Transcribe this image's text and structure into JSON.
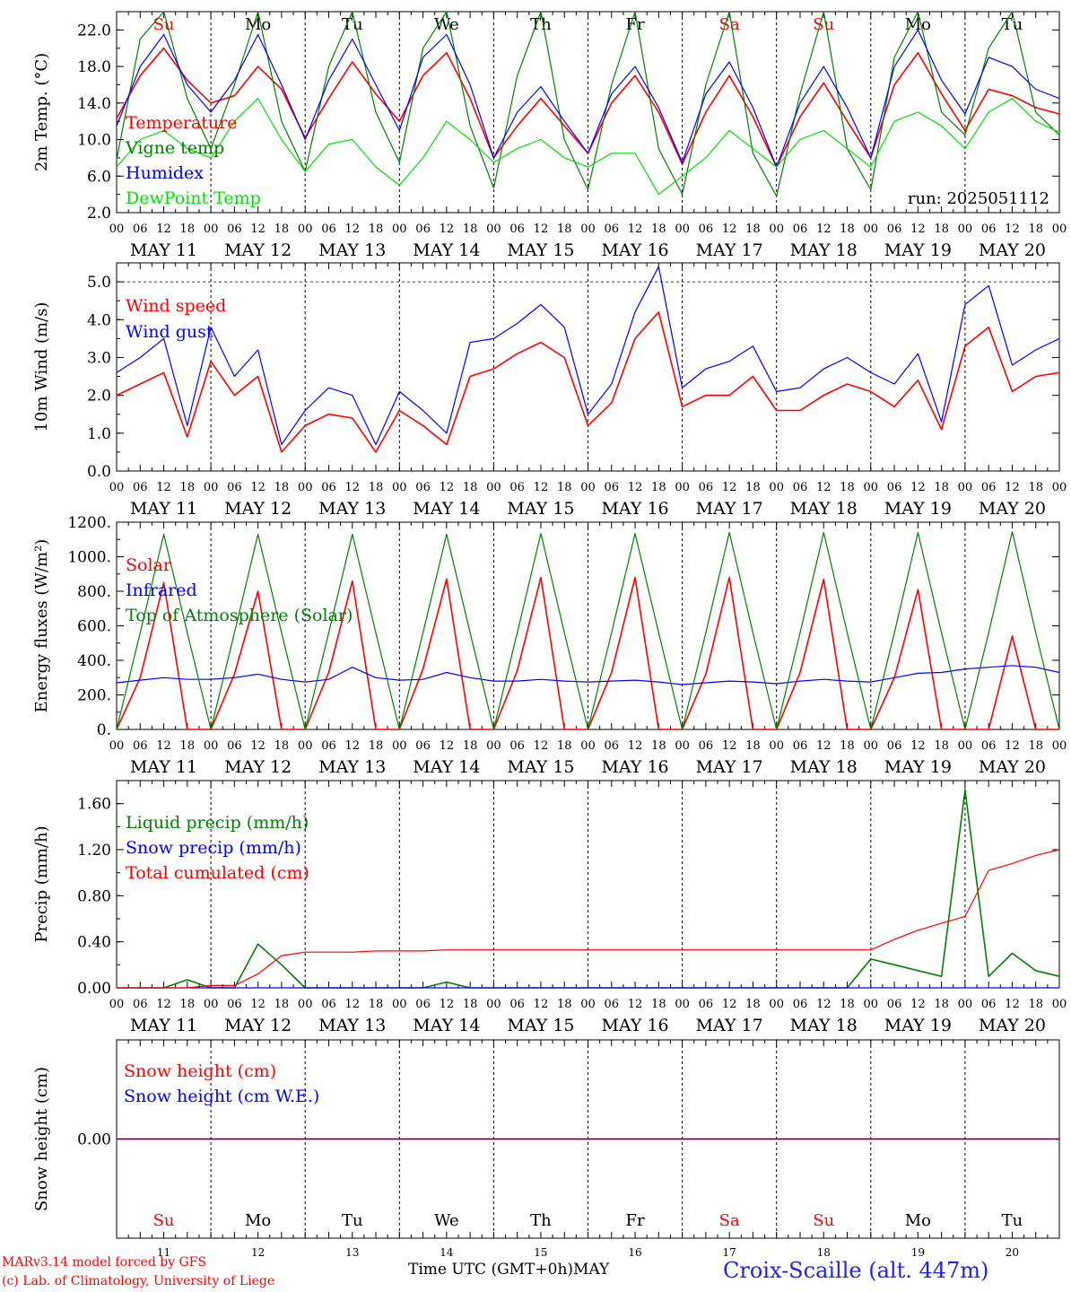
{
  "days": [
    {
      "abbr": "Su",
      "date": "MAY 11",
      "num": "11",
      "color": "#ff0000"
    },
    {
      "abbr": "Mo",
      "date": "MAY 12",
      "num": "12",
      "color": "#000000"
    },
    {
      "abbr": "Tu",
      "date": "MAY 13",
      "num": "13",
      "color": "#000000"
    },
    {
      "abbr": "We",
      "date": "MAY 14",
      "num": "14",
      "color": "#000000"
    },
    {
      "abbr": "Th",
      "date": "MAY 15",
      "num": "15",
      "color": "#000000"
    },
    {
      "abbr": "Fr",
      "date": "MAY 16",
      "num": "16",
      "color": "#000000"
    },
    {
      "abbr": "Sa",
      "date": "MAY 17",
      "num": "17",
      "color": "#ff0000"
    },
    {
      "abbr": "Su",
      "date": "MAY 18",
      "num": "18",
      "color": "#ff0000"
    },
    {
      "abbr": "Mo",
      "date": "MAY 19",
      "num": "19",
      "color": "#000000"
    },
    {
      "abbr": "Tu",
      "date": "MAY 20",
      "num": "20",
      "color": "#000000"
    }
  ],
  "hour_ticks": [
    "00",
    "06",
    "12",
    "18"
  ],
  "final_hour_tick": "00",
  "footer": {
    "model": "MARv3.14 model forced by GFS",
    "lab": "(c) Lab. of Climatology, University of Liege",
    "xlabel": "Time UTC (GMT+0h)",
    "month": "MAY",
    "station": "Croix-Scaille (alt. 447m)"
  },
  "colors": {
    "red": "#ff0000",
    "green": "#008000",
    "blue": "#0000ff",
    "lightgreen": "#00e000"
  },
  "chart_data": [
    {
      "type": "line",
      "ylabel": "2m Temp. (°C)",
      "ylim": [
        2.0,
        24.0
      ],
      "yticks": [
        "2.0",
        "6.0",
        "10.0",
        "14.0",
        "18.0",
        "22.0"
      ],
      "run_label": "run: 2025051112",
      "x_hours": [
        0,
        6,
        12,
        18,
        24,
        30,
        36,
        42,
        48,
        54,
        60,
        66,
        72,
        78,
        84,
        90,
        96,
        102,
        108,
        114,
        120,
        126,
        132,
        138,
        144,
        150,
        156,
        162,
        168,
        174,
        180,
        186,
        192,
        198,
        204,
        210,
        216,
        222,
        228,
        234,
        240
      ],
      "series": [
        {
          "name": "Temperature",
          "color": "#ff0000",
          "values": [
            12.3,
            17.0,
            20.0,
            16.5,
            14.0,
            14.8,
            18.0,
            15.5,
            10.2,
            14.5,
            18.5,
            15.0,
            12.0,
            17.0,
            19.5,
            14.5,
            8.0,
            11.5,
            14.5,
            11.5,
            8.5,
            14.0,
            17.0,
            13.0,
            7.3,
            13.0,
            17.0,
            12.5,
            7.0,
            12.5,
            16.2,
            12.0,
            8.0,
            16.0,
            19.5,
            15.0,
            11.0,
            15.5,
            14.8,
            13.5,
            12.8
          ]
        },
        {
          "name": "Vigne temp",
          "color": "#008000",
          "values": [
            7.8,
            21.0,
            26.0,
            14.5,
            9.0,
            16.0,
            27.0,
            12.0,
            6.5,
            18.0,
            27.0,
            13.0,
            7.5,
            20.0,
            27.0,
            11.5,
            4.7,
            17.0,
            27.0,
            10.0,
            4.5,
            16.0,
            27.0,
            9.0,
            4.0,
            16.0,
            27.0,
            8.5,
            3.8,
            15.0,
            26.0,
            9.0,
            4.5,
            19.0,
            27.0,
            13.0,
            10.5,
            20.0,
            26.0,
            13.0,
            10.5
          ]
        },
        {
          "name": "Humidex",
          "color": "#0000ff",
          "values": [
            11.5,
            18.0,
            21.5,
            16.0,
            13.0,
            16.5,
            21.5,
            16.0,
            10.0,
            16.5,
            21.0,
            16.0,
            11.0,
            19.0,
            21.5,
            16.0,
            8.0,
            13.0,
            15.8,
            12.0,
            8.5,
            15.0,
            18.0,
            13.5,
            7.5,
            15.0,
            18.5,
            13.5,
            7.0,
            14.0,
            18.0,
            13.5,
            8.0,
            18.0,
            22.0,
            16.5,
            12.8,
            19.0,
            18.0,
            15.5,
            14.5
          ]
        },
        {
          "name": "DewPoint Temp",
          "color": "#00e000",
          "values": [
            7.0,
            10.0,
            11.0,
            9.0,
            8.0,
            12.0,
            14.5,
            10.0,
            6.5,
            9.5,
            10.0,
            7.0,
            5.0,
            8.0,
            12.0,
            10.0,
            7.5,
            9.0,
            10.0,
            8.0,
            7.0,
            8.5,
            8.5,
            4.0,
            6.0,
            8.0,
            11.0,
            9.0,
            7.0,
            10.0,
            11.0,
            9.0,
            7.0,
            12.0,
            13.0,
            11.5,
            9.0,
            13.0,
            14.5,
            12.0,
            10.8
          ]
        }
      ]
    },
    {
      "type": "line",
      "ylabel": "10m Wind (m/s)",
      "ylim": [
        0.0,
        5.5
      ],
      "yticks": [
        "0.0",
        "1.0",
        "2.0",
        "3.0",
        "4.0",
        "5.0"
      ],
      "x_hours": [
        0,
        6,
        12,
        18,
        24,
        30,
        36,
        42,
        48,
        54,
        60,
        66,
        72,
        78,
        84,
        90,
        96,
        102,
        108,
        114,
        120,
        126,
        132,
        138,
        144,
        150,
        156,
        162,
        168,
        174,
        180,
        186,
        192,
        198,
        204,
        210,
        216,
        222,
        228,
        234,
        240
      ],
      "series": [
        {
          "name": "Wind speed",
          "color": "#ff0000",
          "values": [
            2.0,
            2.3,
            2.6,
            0.9,
            2.9,
            2.0,
            2.5,
            0.5,
            1.2,
            1.5,
            1.4,
            0.5,
            1.6,
            1.2,
            0.7,
            2.5,
            2.7,
            3.1,
            3.4,
            3.0,
            1.2,
            1.8,
            3.5,
            4.2,
            1.7,
            2.0,
            2.0,
            2.5,
            1.6,
            1.6,
            2.0,
            2.3,
            2.1,
            1.7,
            2.4,
            1.1,
            3.3,
            3.8,
            2.1,
            2.5,
            2.6
          ]
        },
        {
          "name": "Wind gust",
          "color": "#0000ff",
          "values": [
            2.6,
            3.0,
            3.5,
            1.2,
            3.8,
            2.5,
            3.2,
            0.7,
            1.6,
            2.2,
            2.0,
            0.7,
            2.1,
            1.6,
            1.0,
            3.4,
            3.5,
            3.9,
            4.4,
            3.8,
            1.5,
            2.3,
            4.2,
            5.4,
            2.2,
            2.7,
            2.9,
            3.3,
            2.1,
            2.2,
            2.7,
            3.0,
            2.6,
            2.3,
            3.1,
            1.3,
            4.4,
            4.9,
            2.8,
            3.2,
            3.5
          ]
        }
      ]
    },
    {
      "type": "line",
      "ylabel": "Energy fluxes (W/m²)",
      "ylim": [
        0,
        1200
      ],
      "yticks": [
        "0.",
        "200.",
        "400.",
        "600.",
        "800.",
        "1000.",
        "1200."
      ],
      "x_hours": [
        0,
        6,
        12,
        18,
        24,
        30,
        36,
        42,
        48,
        54,
        60,
        66,
        72,
        78,
        84,
        90,
        96,
        102,
        108,
        114,
        120,
        126,
        132,
        138,
        144,
        150,
        156,
        162,
        168,
        174,
        180,
        186,
        192,
        198,
        204,
        210,
        216,
        222,
        228,
        234,
        240
      ],
      "series": [
        {
          "name": "Solar",
          "color": "#ff0000",
          "values": [
            0,
            300,
            850,
            0,
            0,
            320,
            800,
            0,
            0,
            330,
            860,
            0,
            0,
            350,
            870,
            0,
            0,
            340,
            880,
            0,
            0,
            330,
            880,
            0,
            0,
            320,
            880,
            0,
            0,
            330,
            870,
            0,
            0,
            300,
            810,
            0,
            0,
            0,
            540,
            0,
            0
          ]
        },
        {
          "name": "Infrared",
          "color": "#0000ff",
          "values": [
            270,
            285,
            300,
            290,
            290,
            300,
            320,
            290,
            275,
            290,
            360,
            300,
            285,
            290,
            330,
            300,
            280,
            280,
            290,
            280,
            275,
            280,
            285,
            275,
            260,
            270,
            280,
            275,
            265,
            280,
            290,
            280,
            275,
            300,
            325,
            330,
            350,
            360,
            370,
            360,
            330
          ]
        },
        {
          "name": "Top of Atmosphere (Solar)",
          "color": "#008000",
          "values": [
            0,
            560,
            1130,
            560,
            0,
            560,
            1130,
            560,
            0,
            560,
            1130,
            560,
            0,
            560,
            1130,
            560,
            0,
            560,
            1135,
            560,
            0,
            560,
            1135,
            560,
            0,
            560,
            1140,
            560,
            0,
            560,
            1140,
            560,
            0,
            560,
            1140,
            560,
            0,
            560,
            1145,
            560,
            0
          ]
        }
      ]
    },
    {
      "type": "line",
      "ylabel": "Precip (mm/h)",
      "ylim": [
        0.0,
        1.8
      ],
      "yticks": [
        "0.00",
        "0.40",
        "0.80",
        "1.20",
        "1.60"
      ],
      "x_hours": [
        0,
        6,
        12,
        18,
        24,
        30,
        36,
        42,
        48,
        54,
        60,
        66,
        72,
        78,
        84,
        90,
        96,
        102,
        108,
        114,
        120,
        126,
        132,
        138,
        144,
        150,
        156,
        162,
        168,
        174,
        180,
        186,
        192,
        198,
        204,
        210,
        216,
        222,
        228,
        234,
        240
      ],
      "series": [
        {
          "name": "Liquid precip (mm/h)",
          "color": "#008000",
          "values": [
            0,
            0,
            0,
            0.07,
            0,
            0,
            0.38,
            0.2,
            0,
            0,
            0,
            0,
            0,
            0,
            0.05,
            0,
            0,
            0,
            0,
            0,
            0,
            0,
            0,
            0,
            0,
            0,
            0,
            0,
            0,
            0,
            0,
            0,
            0.25,
            0.2,
            0.15,
            0.1,
            1.72,
            0.1,
            0.3,
            0.15,
            0.1
          ]
        },
        {
          "name": "Snow precip (mm/h)",
          "color": "#0000ff",
          "values": [
            0,
            0,
            0,
            0,
            0,
            0,
            0,
            0,
            0,
            0,
            0,
            0,
            0,
            0,
            0,
            0,
            0,
            0,
            0,
            0,
            0,
            0,
            0,
            0,
            0,
            0,
            0,
            0,
            0,
            0,
            0,
            0,
            0,
            0,
            0,
            0,
            0,
            0,
            0,
            0,
            0
          ]
        },
        {
          "name": "Total cumulated (cm)",
          "color": "#ff0000",
          "values": [
            0,
            0,
            0,
            0,
            0.02,
            0.02,
            0.12,
            0.28,
            0.31,
            0.31,
            0.31,
            0.32,
            0.32,
            0.32,
            0.33,
            0.33,
            0.33,
            0.33,
            0.33,
            0.33,
            0.33,
            0.33,
            0.33,
            0.33,
            0.33,
            0.33,
            0.33,
            0.33,
            0.33,
            0.33,
            0.33,
            0.33,
            0.33,
            0.42,
            0.5,
            0.56,
            0.62,
            1.02,
            1.08,
            1.15,
            1.2
          ]
        }
      ]
    },
    {
      "type": "line",
      "ylabel": "Snow height (cm)",
      "ylim": [
        -1,
        1
      ],
      "yticks": [
        "0.00"
      ],
      "x_hours": [
        0,
        240
      ],
      "series": [
        {
          "name": "Snow height (cm)",
          "color": "#ff0000",
          "values": [
            0,
            0
          ]
        },
        {
          "name": "Snow height (cm W.E.)",
          "color": "#0000ff",
          "values": [
            0,
            0
          ]
        }
      ]
    }
  ]
}
